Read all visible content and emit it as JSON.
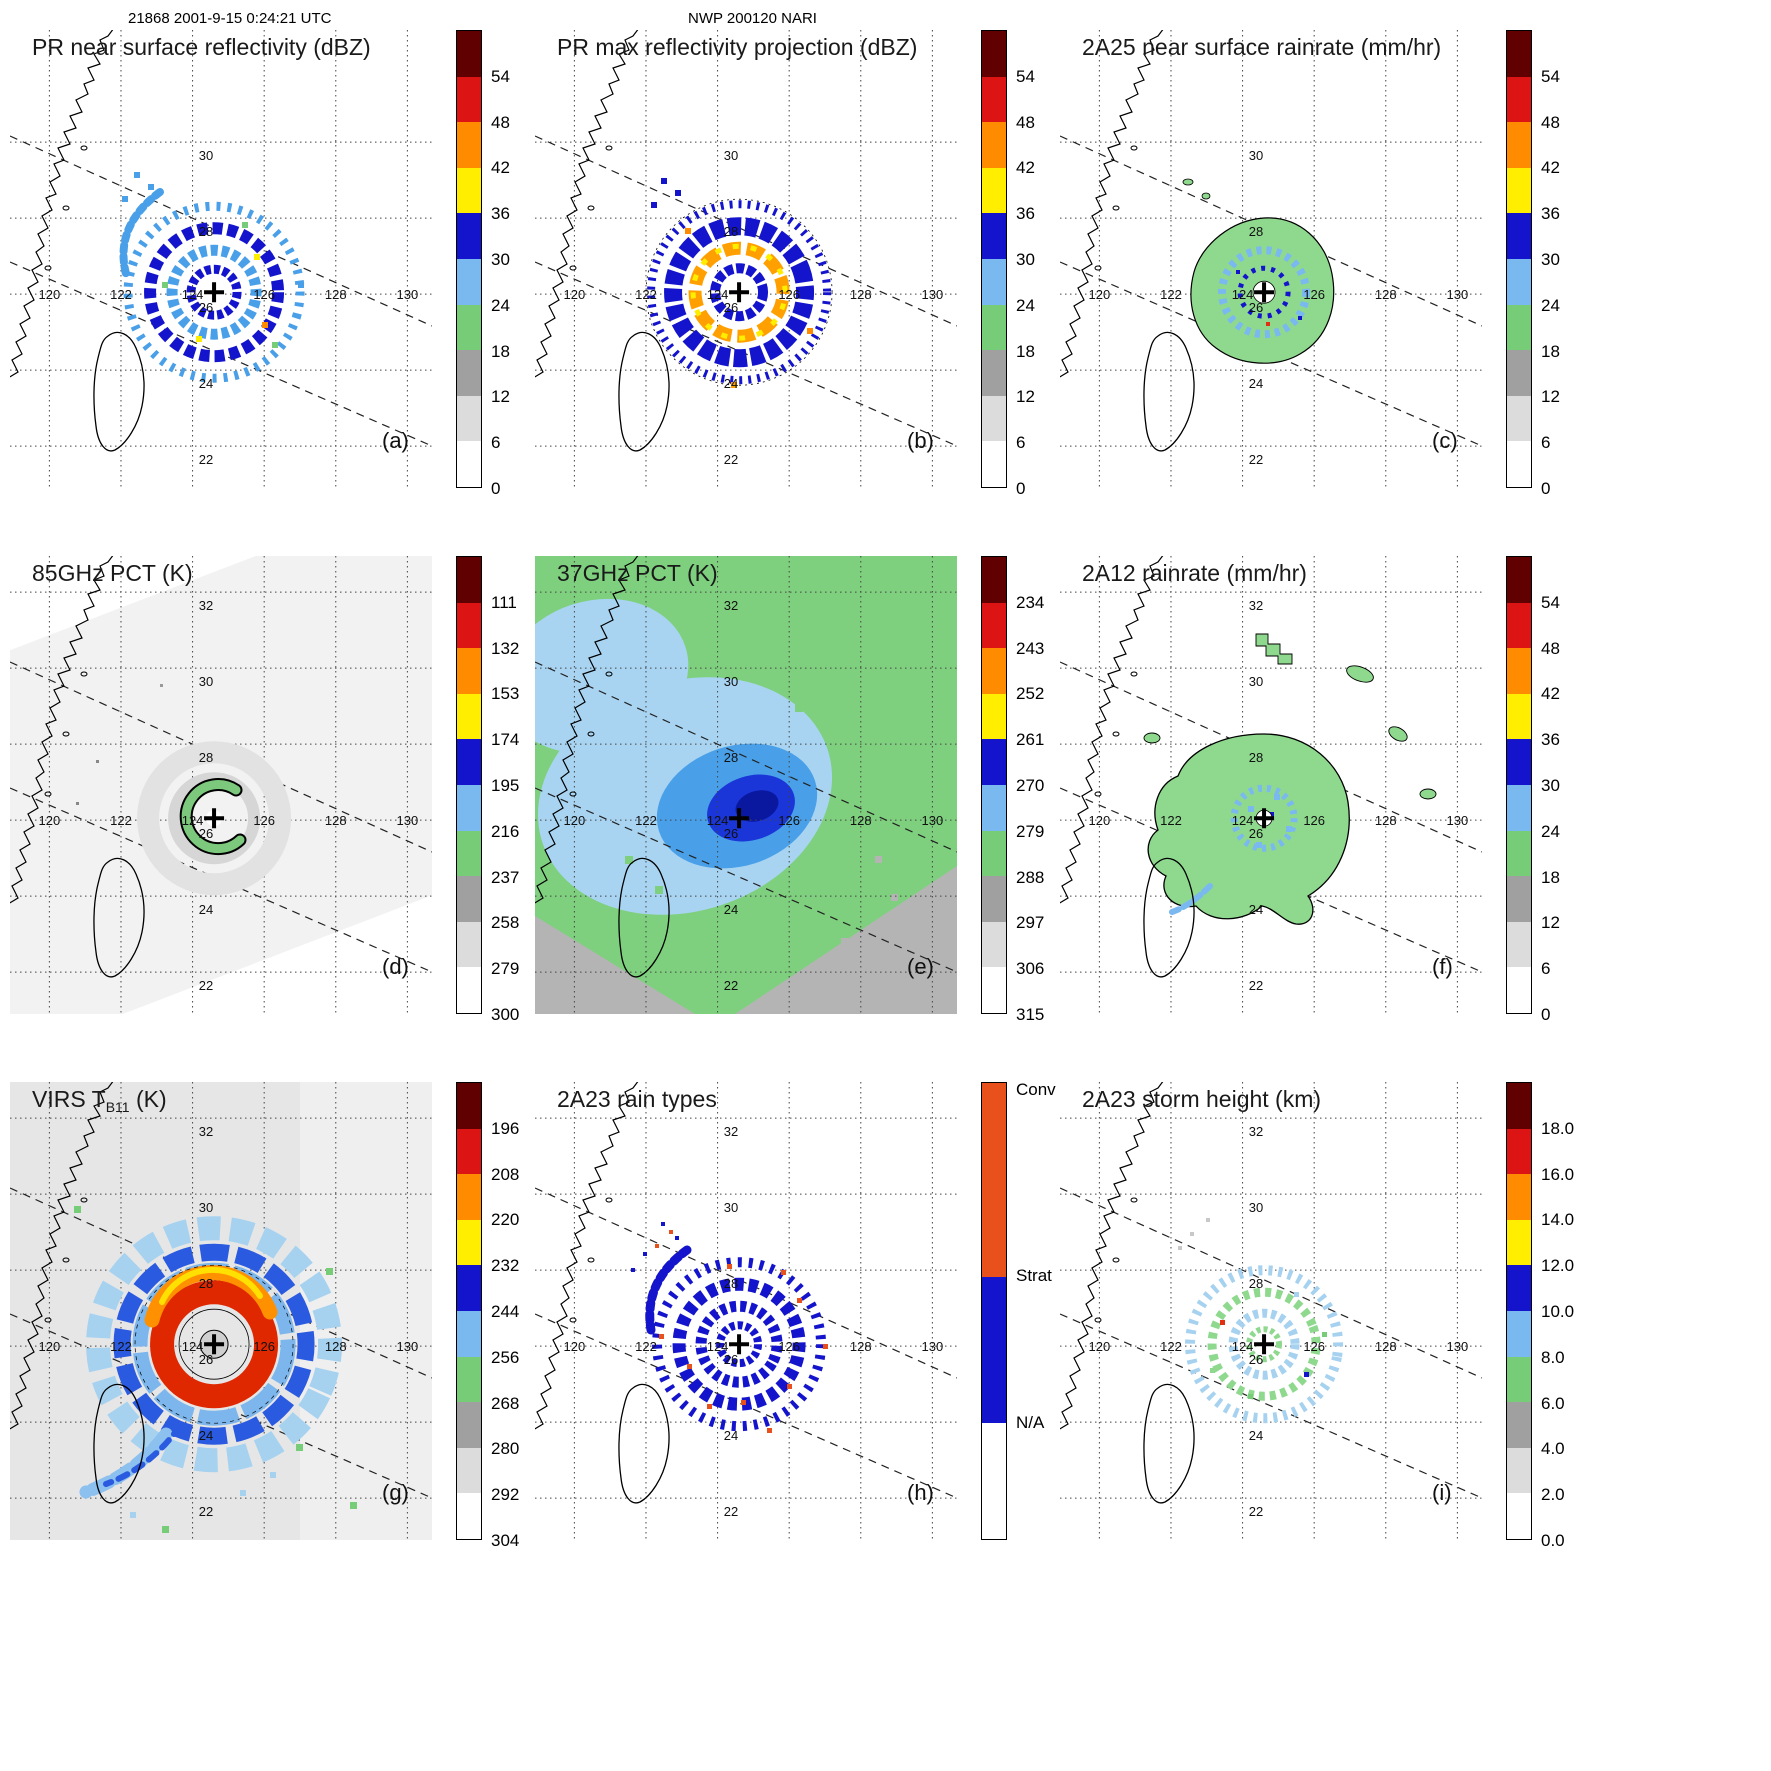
{
  "figure": {
    "header_left": "21868 2001-9-15 0:24:21 UTC",
    "header_center": "NWP 200120 NARI"
  },
  "grid": {
    "lon_labels": [
      "120",
      "122",
      "124",
      "126",
      "128",
      "130"
    ],
    "lat_labels_full": [
      "32",
      "30",
      "28",
      "26",
      "24",
      "22"
    ],
    "lat_labels_row1": [
      "30",
      "28",
      "26",
      "24",
      "22"
    ]
  },
  "panels": [
    {
      "letter": "(a)",
      "title": "PR near surface reflectivity (dBZ)",
      "ticks": [
        "54",
        "48",
        "42",
        "36",
        "30",
        "24",
        "18",
        "12",
        "6",
        "0"
      ]
    },
    {
      "letter": "(b)",
      "title": "PR max reflectivity projection (dBZ)",
      "ticks": [
        "54",
        "48",
        "42",
        "36",
        "30",
        "24",
        "18",
        "12",
        "6",
        "0"
      ]
    },
    {
      "letter": "(c)",
      "title": "2A25 near surface rainrate (mm/hr)",
      "ticks": [
        "54",
        "48",
        "42",
        "36",
        "30",
        "24",
        "18",
        "12",
        "6",
        "0"
      ]
    },
    {
      "letter": "(d)",
      "title": "85GHz PCT (K)",
      "ticks": [
        "111",
        "132",
        "153",
        "174",
        "195",
        "216",
        "237",
        "258",
        "279",
        "300"
      ]
    },
    {
      "letter": "(e)",
      "title": "37GHz PCT (K)",
      "ticks": [
        "234",
        "243",
        "252",
        "261",
        "270",
        "279",
        "288",
        "297",
        "306",
        "315"
      ]
    },
    {
      "letter": "(f)",
      "title": "2A12 rainrate (mm/hr)",
      "ticks": [
        "54",
        "48",
        "42",
        "36",
        "30",
        "24",
        "18",
        "12",
        "6",
        "0"
      ]
    },
    {
      "letter": "(g)",
      "title_pre": "VIRS T",
      "title_sub": "B11",
      "title_post": " (K)",
      "ticks": [
        "196",
        "208",
        "220",
        "232",
        "244",
        "256",
        "268",
        "280",
        "292",
        "304"
      ]
    },
    {
      "letter": "(h)",
      "title": "2A23 rain types",
      "ticks": [
        "Conv",
        "Strat",
        "N/A"
      ]
    },
    {
      "letter": "(i)",
      "title": "2A23 storm height (km)",
      "ticks": [
        "18.0",
        "16.0",
        "14.0",
        "12.0",
        "10.0",
        "8.0",
        "6.0",
        "4.0",
        "2.0",
        "0.0"
      ]
    }
  ],
  "colors": {
    "scale_top_to_bottom": [
      "#600000",
      "#dc1414",
      "#ff8c00",
      "#ffee00",
      "#1414cc",
      "#7ab8f0",
      "#77cc77",
      "#a0a0a0",
      "#dcdcdc",
      "#ffffff"
    ],
    "rain_type_segments": [
      "#e8501c",
      "#1414cc",
      "#ffffff"
    ]
  },
  "chart_data": [
    {
      "panel": "(a)",
      "type": "heatmap",
      "title": "PR near surface reflectivity (dBZ)",
      "units": "dBZ",
      "colorbar_ticks": [
        0,
        6,
        12,
        18,
        24,
        30,
        36,
        42,
        48,
        54
      ],
      "lon_ticks": [
        120,
        122,
        124,
        126,
        128,
        130
      ],
      "lat_ticks": [
        22,
        24,
        26,
        28,
        30,
        32
      ],
      "storm_center": {
        "lon": 124.6,
        "lat": 26.1
      }
    },
    {
      "panel": "(b)",
      "type": "heatmap",
      "title": "PR max reflectivity projection (dBZ)",
      "units": "dBZ",
      "colorbar_ticks": [
        0,
        6,
        12,
        18,
        24,
        30,
        36,
        42,
        48,
        54
      ],
      "lon_ticks": [
        120,
        122,
        124,
        126,
        128,
        130
      ],
      "lat_ticks": [
        22,
        24,
        26,
        28,
        30,
        32
      ],
      "storm_center": {
        "lon": 124.6,
        "lat": 26.1
      }
    },
    {
      "panel": "(c)",
      "type": "heatmap",
      "title": "2A25 near surface rainrate (mm/hr)",
      "units": "mm/hr",
      "colorbar_ticks": [
        0,
        6,
        12,
        18,
        24,
        30,
        36,
        42,
        48,
        54
      ],
      "lon_ticks": [
        120,
        122,
        124,
        126,
        128,
        130
      ],
      "lat_ticks": [
        22,
        24,
        26,
        28,
        30,
        32
      ],
      "storm_center": {
        "lon": 124.6,
        "lat": 26.1
      }
    },
    {
      "panel": "(d)",
      "type": "heatmap",
      "title": "85GHz PCT (K)",
      "units": "K",
      "colorbar_ticks": [
        111,
        132,
        153,
        174,
        195,
        216,
        237,
        258,
        279,
        300
      ],
      "lon_ticks": [
        120,
        122,
        124,
        126,
        128,
        130
      ],
      "lat_ticks": [
        22,
        24,
        26,
        28,
        30,
        32
      ],
      "storm_center": {
        "lon": 124.6,
        "lat": 26.1
      }
    },
    {
      "panel": "(e)",
      "type": "heatmap",
      "title": "37GHz PCT (K)",
      "units": "K",
      "colorbar_ticks": [
        234,
        243,
        252,
        261,
        270,
        279,
        288,
        297,
        306,
        315
      ],
      "lon_ticks": [
        120,
        122,
        124,
        126,
        128,
        130
      ],
      "lat_ticks": [
        22,
        24,
        26,
        28,
        30,
        32
      ],
      "storm_center": {
        "lon": 124.6,
        "lat": 26.1
      }
    },
    {
      "panel": "(f)",
      "type": "heatmap",
      "title": "2A12 rainrate (mm/hr)",
      "units": "mm/hr",
      "colorbar_ticks": [
        0,
        6,
        12,
        18,
        24,
        30,
        36,
        42,
        48,
        54
      ],
      "lon_ticks": [
        120,
        122,
        124,
        126,
        128,
        130
      ],
      "lat_ticks": [
        22,
        24,
        26,
        28,
        30,
        32
      ],
      "storm_center": {
        "lon": 124.6,
        "lat": 26.1
      }
    },
    {
      "panel": "(g)",
      "type": "heatmap",
      "title": "VIRS T_B11 (K)",
      "units": "K",
      "colorbar_ticks": [
        196,
        208,
        220,
        232,
        244,
        256,
        268,
        280,
        292,
        304
      ],
      "lon_ticks": [
        120,
        122,
        124,
        126,
        128,
        130
      ],
      "lat_ticks": [
        22,
        24,
        26,
        28,
        30,
        32
      ],
      "storm_center": {
        "lon": 124.6,
        "lat": 26.1
      }
    },
    {
      "panel": "(h)",
      "type": "categorical-map",
      "title": "2A23 rain types",
      "categories": [
        "Conv",
        "Strat",
        "N/A"
      ],
      "lon_ticks": [
        120,
        122,
        124,
        126,
        128,
        130
      ],
      "lat_ticks": [
        22,
        24,
        26,
        28,
        30,
        32
      ],
      "storm_center": {
        "lon": 124.6,
        "lat": 26.1
      }
    },
    {
      "panel": "(i)",
      "type": "heatmap",
      "title": "2A23 storm height (km)",
      "units": "km",
      "colorbar_ticks": [
        0,
        2,
        4,
        6,
        8,
        10,
        12,
        14,
        16,
        18
      ],
      "lon_ticks": [
        120,
        122,
        124,
        126,
        128,
        130
      ],
      "lat_ticks": [
        22,
        24,
        26,
        28,
        30,
        32
      ],
      "storm_center": {
        "lon": 124.6,
        "lat": 26.1
      }
    }
  ]
}
